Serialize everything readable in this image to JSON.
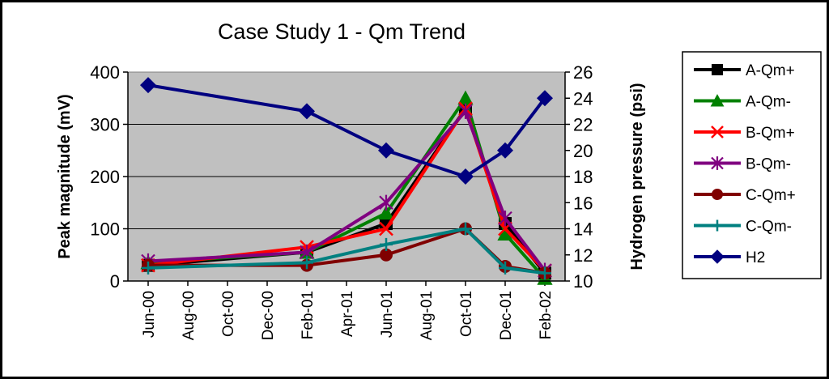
{
  "chart_data": {
    "type": "line",
    "title": "Case Study 1 - Qm Trend",
    "ylabel": "Peak magnitude (mV)",
    "y2label": "Hydrogen pressure (psi)",
    "xlabel": "",
    "ylim": [
      0,
      400
    ],
    "y2lim": [
      10,
      26
    ],
    "yticks": [
      "0",
      "100",
      "200",
      "300",
      "400"
    ],
    "y2ticks": [
      "10",
      "12",
      "14",
      "16",
      "18",
      "20",
      "22",
      "24",
      "26"
    ],
    "xtick_labels": [
      "Jun-00",
      "Aug-00",
      "Oct-00",
      "Dec-00",
      "Feb-01",
      "Apr-01",
      "Jun-01",
      "Aug-01",
      "Oct-01",
      "Dec-01",
      "Feb-02"
    ],
    "x_dates": [
      "Jun-00",
      "Feb-01",
      "Jun-01",
      "Oct-01",
      "Dec-01",
      "Feb-02"
    ],
    "plot_background": "#c0c0c0",
    "grid": true,
    "legend_position": "right",
    "series": [
      {
        "name": "A-Qm+",
        "axis": "left",
        "color": "#000000",
        "marker": "square",
        "values": [
          30,
          55,
          110,
          330,
          110,
          15
        ]
      },
      {
        "name": "A-Qm-",
        "axis": "left",
        "color": "#008000",
        "marker": "triangle",
        "values": [
          35,
          55,
          130,
          350,
          90,
          5
        ]
      },
      {
        "name": "B-Qm+",
        "axis": "left",
        "color": "#ff0000",
        "marker": "x",
        "values": [
          30,
          65,
          100,
          330,
          100,
          20
        ]
      },
      {
        "name": "B-Qm-",
        "axis": "left",
        "color": "#800080",
        "marker": "star",
        "values": [
          38,
          55,
          150,
          325,
          120,
          20
        ]
      },
      {
        "name": "C-Qm+",
        "axis": "left",
        "color": "#800000",
        "marker": "circle",
        "values": [
          30,
          30,
          50,
          100,
          28,
          15
        ]
      },
      {
        "name": "C-Qm-",
        "axis": "left",
        "color": "#008080",
        "marker": "plus",
        "values": [
          25,
          35,
          70,
          100,
          25,
          15
        ]
      },
      {
        "name": "H2",
        "axis": "right",
        "color": "#000080",
        "marker": "diamond",
        "values": [
          25,
          23,
          20,
          18,
          20,
          24
        ]
      }
    ]
  }
}
